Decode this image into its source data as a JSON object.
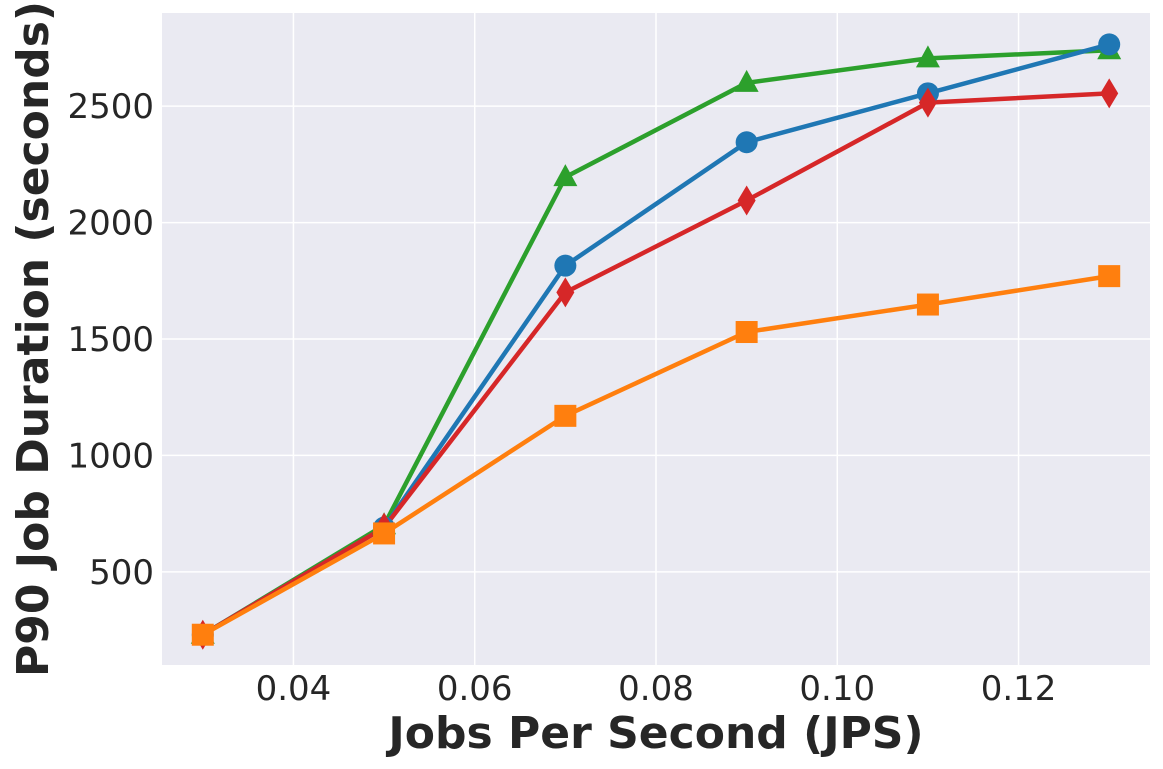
{
  "chart_data": {
    "type": "line",
    "title": "",
    "xlabel": "Jobs Per Second (JPS)",
    "ylabel": "P90 Job Duration (seconds)",
    "xlim": [
      0.0255,
      0.1345
    ],
    "ylim": [
      100,
      2900
    ],
    "xticks": [
      "0.04",
      "0.06",
      "0.08",
      "0.10",
      "0.12"
    ],
    "xtick_values": [
      0.04,
      0.06,
      0.08,
      0.1,
      0.12
    ],
    "yticks": [
      "500",
      "1000",
      "1500",
      "2000",
      "2500"
    ],
    "ytick_values": [
      500,
      1000,
      1500,
      2000,
      2500
    ],
    "grid": true,
    "background": "#eaeaf2",
    "x": [
      0.03,
      0.05,
      0.07,
      0.09,
      0.11,
      0.13
    ],
    "series": [
      {
        "color": "#2ca02c",
        "marker": "triangle",
        "values": [
          230,
          700,
          2195,
          2600,
          2705,
          2740
        ]
      },
      {
        "color": "#1f77b4",
        "marker": "circle",
        "values": [
          230,
          690,
          1815,
          2345,
          2555,
          2765
        ]
      },
      {
        "color": "#d62728",
        "marker": "diamond",
        "values": [
          230,
          690,
          1700,
          2095,
          2515,
          2555
        ]
      },
      {
        "color": "#ff7f0e",
        "marker": "square",
        "values": [
          230,
          665,
          1170,
          1530,
          1648,
          1770
        ]
      }
    ]
  }
}
